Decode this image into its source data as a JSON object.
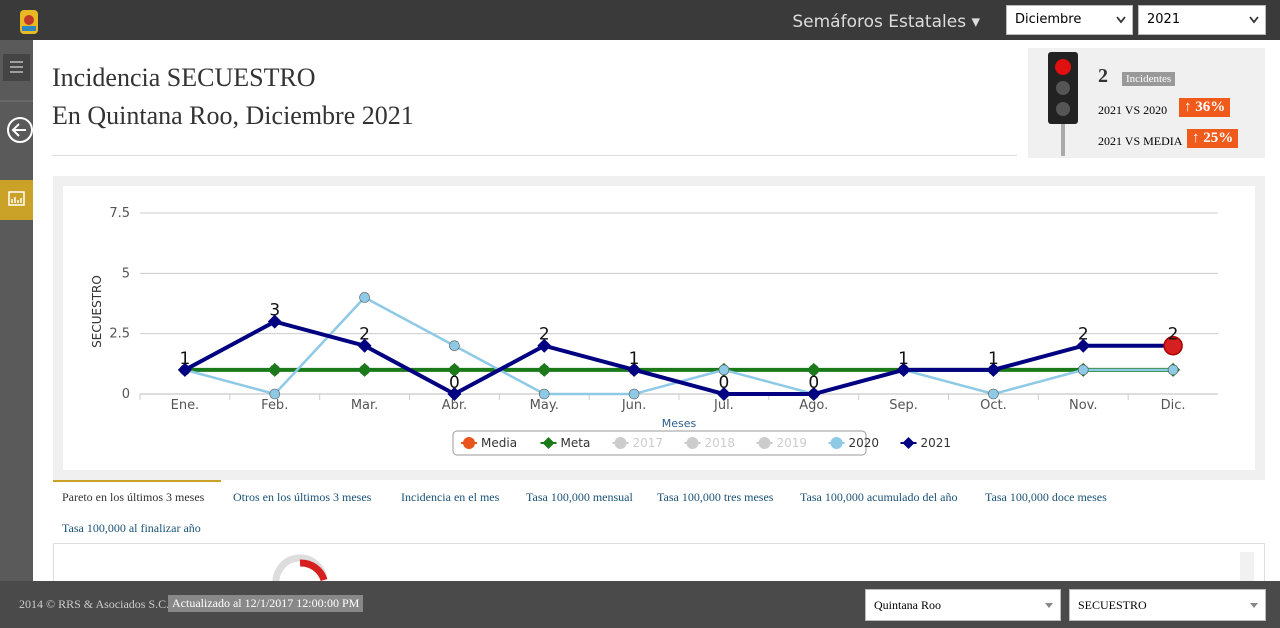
{
  "header": {
    "menu": "Semáforos Estatales",
    "month": "Diciembre",
    "year": "2021"
  },
  "title": {
    "line1": "Incidencia SECUESTRO",
    "line2": "En Quintana Roo, Diciembre 2021"
  },
  "indicator": {
    "count": "2",
    "count_label": "Incidentes",
    "compare": [
      {
        "label": "2021 VS 2020",
        "value": "36%"
      },
      {
        "label": "2021 VS MEDIA",
        "value": "25%"
      }
    ]
  },
  "chart_data": {
    "type": "line",
    "y_label": "SECUESTRO",
    "x_label": "Meses",
    "categories": [
      "Ene.",
      "Feb.",
      "Mar.",
      "Abr.",
      "May.",
      "Jun.",
      "Jul.",
      "Ago.",
      "Sep.",
      "Oct.",
      "Nov.",
      "Dic."
    ],
    "ylim": [
      0,
      7.5
    ],
    "yticks": [
      0,
      2.5,
      5,
      7.5
    ],
    "grid": true,
    "series": [
      {
        "name": "Media",
        "color": "#e8541c",
        "marker": "circle",
        "values": [
          1,
          1,
          1,
          1,
          1,
          1,
          1,
          1,
          1,
          1,
          1,
          1
        ]
      },
      {
        "name": "Meta",
        "color": "#1a7a1a",
        "marker": "diamond",
        "line": true,
        "values": [
          1,
          1,
          1,
          1,
          1,
          1,
          1,
          1,
          1,
          1,
          1,
          1
        ]
      },
      {
        "name": "2017",
        "color": "#cccccc",
        "visible": false
      },
      {
        "name": "2018",
        "color": "#cccccc",
        "visible": false
      },
      {
        "name": "2019",
        "color": "#cccccc",
        "visible": false
      },
      {
        "name": "2020",
        "color": "#8ecae6",
        "marker": "circle",
        "line": true,
        "values": [
          1,
          0,
          4,
          2,
          0,
          0,
          1,
          0,
          1,
          0,
          1,
          1
        ]
      },
      {
        "name": "2021",
        "color": "#000080",
        "marker": "diamond",
        "line": true,
        "labels": true,
        "values": [
          1,
          3,
          2,
          0,
          2,
          1,
          0,
          0,
          1,
          1,
          2,
          2
        ]
      }
    ]
  },
  "tabs": [
    "Pareto en los últimos 3 meses",
    "Otros en los últimos 3 meses",
    "Incidencia en el mes",
    "Tasa 100,000 mensual",
    "Tasa 100,000 tres meses",
    "Tasa 100,000 acumulado del año",
    "Tasa 100,000 doce meses",
    "Tasa 100,000 al finalizar año"
  ],
  "footer": {
    "copyright": "2014 © RRS & Asociados S.C.",
    "updated": "Actualizado al 12/1/2017 12:00:00 PM",
    "state": "Quintana Roo",
    "crime": "SECUESTRO"
  }
}
